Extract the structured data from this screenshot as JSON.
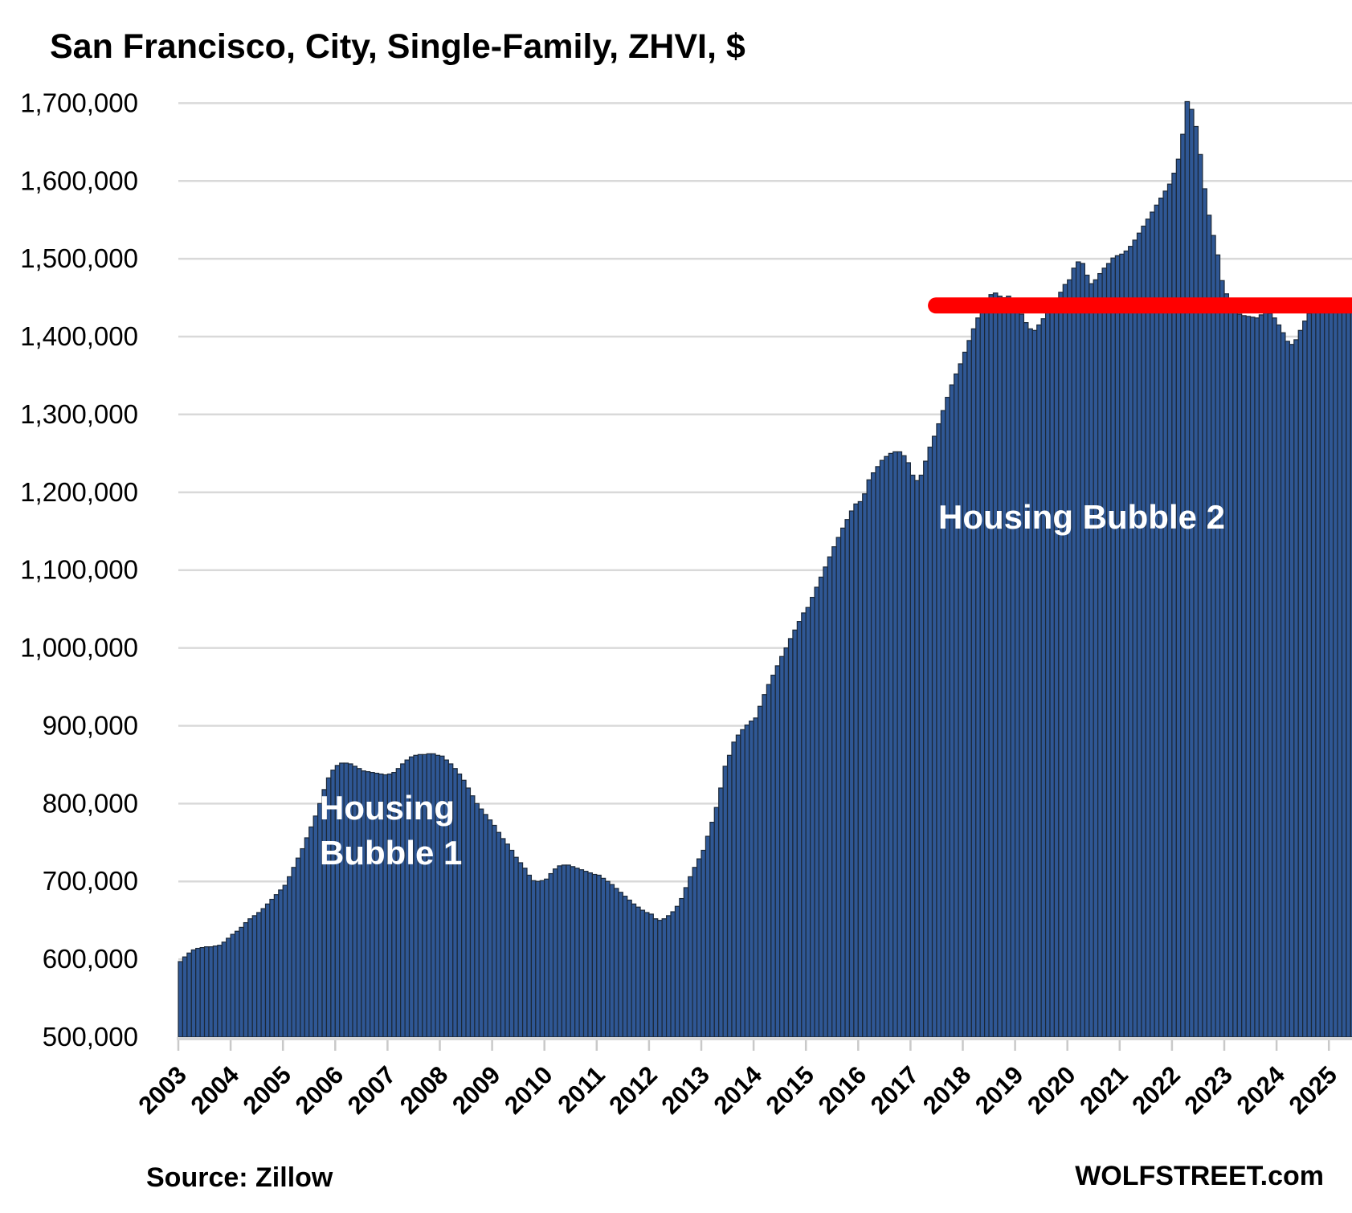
{
  "title": "San Francisco, City, Single-Family, ZHVI, $",
  "source_label": "Source: Zillow",
  "brand_label": "WOLFSTREET.com",
  "annotations": {
    "bubble1_line1": "Housing",
    "bubble1_line2": "Bubble 1",
    "bubble2": "Housing Bubble 2"
  },
  "colors": {
    "background": "#ffffff",
    "bar_fill": "#2f5794",
    "bar_stroke": "#1b2838",
    "reference_line": "#ff0000",
    "gridline": "#d9d9d9",
    "axis_line": "#d6d6d6",
    "tick": "#c9c9c9",
    "text": "#000000",
    "annotation_text": "#ffffff"
  },
  "chart_data": {
    "type": "bar",
    "title": "San Francisco, City, Single-Family, ZHVI, $",
    "xlabel": "",
    "ylabel": "",
    "unit": "USD",
    "frequency": "monthly",
    "x_start": {
      "year": 2003,
      "month": 1
    },
    "x_end": {
      "year": 2025,
      "month": 6
    },
    "ylim": [
      500000,
      1700000
    ],
    "y_tick_interval": 100000,
    "y_tick_labels": [
      "500,000",
      "600,000",
      "700,000",
      "800,000",
      "900,000",
      "1,000,000",
      "1,100,000",
      "1,200,000",
      "1,300,000",
      "1,400,000",
      "1,500,000",
      "1,600,000",
      "1,700,000"
    ],
    "x_tick_years": [
      2003,
      2004,
      2005,
      2006,
      2007,
      2008,
      2009,
      2010,
      2011,
      2012,
      2013,
      2014,
      2015,
      2016,
      2017,
      2018,
      2019,
      2020,
      2021,
      2022,
      2023,
      2024,
      2025
    ],
    "grid": true,
    "legend": false,
    "series": [
      {
        "name": "ZHVI single-family, San Francisco city, $",
        "values": [
          597000,
          603000,
          608000,
          612000,
          614000,
          615000,
          616000,
          616000,
          617000,
          618000,
          622000,
          627000,
          632000,
          636000,
          641000,
          647000,
          652000,
          656000,
          660000,
          665000,
          671000,
          677000,
          683000,
          689000,
          695000,
          706000,
          718000,
          730000,
          742000,
          756000,
          770000,
          784000,
          800000,
          818000,
          833000,
          843000,
          849000,
          852000,
          852000,
          851000,
          848000,
          845000,
          842000,
          841000,
          840000,
          839000,
          838000,
          837000,
          838000,
          840000,
          845000,
          851000,
          856000,
          860000,
          862000,
          863000,
          863000,
          864000,
          864000,
          862000,
          861000,
          856000,
          851000,
          845000,
          838000,
          830000,
          820000,
          810000,
          800000,
          793000,
          786000,
          779000,
          772000,
          763000,
          755000,
          748000,
          740000,
          731000,
          724000,
          717000,
          708000,
          701000,
          700000,
          701000,
          703000,
          710000,
          716000,
          720000,
          721000,
          721000,
          719000,
          717000,
          715000,
          713000,
          711000,
          709000,
          708000,
          704000,
          700000,
          696000,
          691000,
          686000,
          681000,
          676000,
          671000,
          667000,
          663000,
          660000,
          658000,
          652000,
          650000,
          652000,
          656000,
          661000,
          668000,
          678000,
          692000,
          706000,
          718000,
          729000,
          740000,
          758000,
          776000,
          795000,
          820000,
          848000,
          862000,
          879000,
          888000,
          895000,
          901000,
          906000,
          910000,
          925000,
          940000,
          953000,
          965000,
          977000,
          989000,
          1000000,
          1012000,
          1023000,
          1034000,
          1045000,
          1052000,
          1065000,
          1078000,
          1091000,
          1104000,
          1117000,
          1130000,
          1142000,
          1154000,
          1165000,
          1176000,
          1185000,
          1188000,
          1198000,
          1216000,
          1225000,
          1233000,
          1241000,
          1246000,
          1250000,
          1252000,
          1252000,
          1247000,
          1238000,
          1222000,
          1215000,
          1222000,
          1240000,
          1258000,
          1272000,
          1288000,
          1305000,
          1322000,
          1338000,
          1352000,
          1365000,
          1380000,
          1395000,
          1410000,
          1424000,
          1439000,
          1449000,
          1454000,
          1456000,
          1452000,
          1450000,
          1452000,
          1448000,
          1441000,
          1429000,
          1418000,
          1410000,
          1408000,
          1415000,
          1423000,
          1431000,
          1438000,
          1447000,
          1457000,
          1467000,
          1473000,
          1488000,
          1496000,
          1494000,
          1479000,
          1468000,
          1473000,
          1481000,
          1488000,
          1494000,
          1501000,
          1504000,
          1506000,
          1510000,
          1516000,
          1524000,
          1533000,
          1542000,
          1551000,
          1560000,
          1569000,
          1578000,
          1587000,
          1596000,
          1610000,
          1628000,
          1660000,
          1702000,
          1692000,
          1670000,
          1634000,
          1590000,
          1556000,
          1530000,
          1505000,
          1472000,
          1455000,
          1443000,
          1434000,
          1429000,
          1427000,
          1426000,
          1425000,
          1424000,
          1428000,
          1433000,
          1430000,
          1424000,
          1415000,
          1405000,
          1394000,
          1390000,
          1396000,
          1408000,
          1420000,
          1430000,
          1438000,
          1441000,
          1441000,
          1440000,
          1442000,
          1445000,
          1448000,
          1447000,
          1445000,
          1443000
        ]
      }
    ],
    "reference_line": {
      "value": 1440000,
      "color": "#ff0000",
      "starts_at": {
        "year": 2017,
        "month": 5
      },
      "extends_to": "right edge",
      "note": "red horizontal line marking current level vs Housing Bubble 2 run-up"
    }
  }
}
